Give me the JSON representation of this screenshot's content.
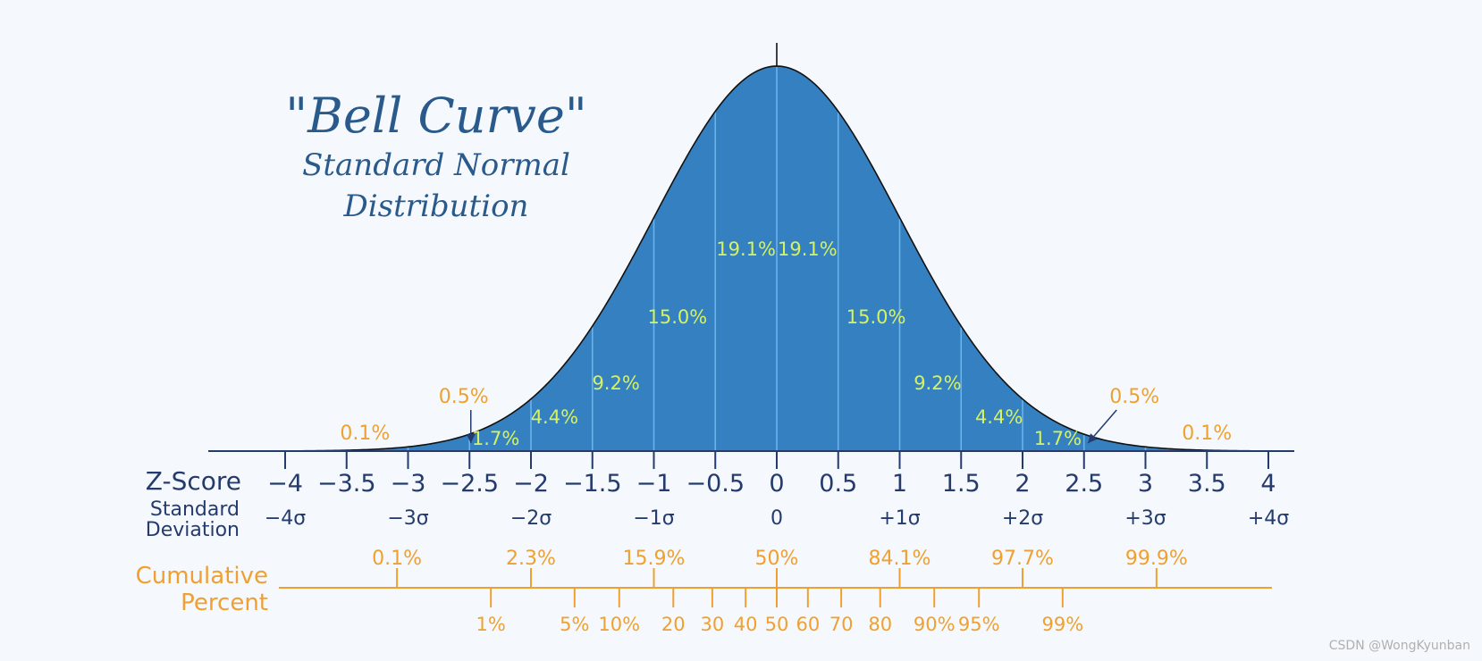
{
  "chart_data": {
    "type": "area",
    "title": "\"Bell Curve\"",
    "subtitle_line1": "Standard Normal",
    "subtitle_line2": "Distribution",
    "xlim": [
      -4.2,
      4.2
    ],
    "z_label": "Z-Score",
    "sd_label_line1": "Standard",
    "sd_label_line2": "Deviation",
    "cum_label_line1": "Cumulative",
    "cum_label_line2": "Percent",
    "z_ticks": [
      {
        "z": -4,
        "label": "−4"
      },
      {
        "z": -3.5,
        "label": "−3.5"
      },
      {
        "z": -3,
        "label": "−3"
      },
      {
        "z": -2.5,
        "label": "−2.5"
      },
      {
        "z": -2,
        "label": "−2"
      },
      {
        "z": -1.5,
        "label": "−1.5"
      },
      {
        "z": -1,
        "label": "−1"
      },
      {
        "z": -0.5,
        "label": "−0.5"
      },
      {
        "z": 0,
        "label": "0"
      },
      {
        "z": 0.5,
        "label": "0.5"
      },
      {
        "z": 1,
        "label": "1"
      },
      {
        "z": 1.5,
        "label": "1.5"
      },
      {
        "z": 2,
        "label": "2"
      },
      {
        "z": 2.5,
        "label": "2.5"
      },
      {
        "z": 3,
        "label": "3"
      },
      {
        "z": 3.5,
        "label": "3.5"
      },
      {
        "z": 4,
        "label": "4"
      }
    ],
    "sd_ticks": [
      {
        "z": -4,
        "label": "−4σ"
      },
      {
        "z": -3,
        "label": "−3σ"
      },
      {
        "z": -2,
        "label": "−2σ"
      },
      {
        "z": -1,
        "label": "−1σ"
      },
      {
        "z": 0,
        "label": "0"
      },
      {
        "z": 1,
        "label": "+1σ"
      },
      {
        "z": 2,
        "label": "+2σ"
      },
      {
        "z": 3,
        "label": "+3σ"
      },
      {
        "z": 4,
        "label": "+4σ"
      }
    ],
    "region_labels": [
      {
        "z": -0.25,
        "label": "19.1%"
      },
      {
        "z": 0.25,
        "label": "19.1%"
      },
      {
        "z": -0.75,
        "label": "15.0%"
      },
      {
        "z": 0.75,
        "label": "15.0%"
      },
      {
        "z": -1.25,
        "label": "9.2%"
      },
      {
        "z": 1.25,
        "label": "9.2%"
      },
      {
        "z": -1.75,
        "label": "4.4%"
      },
      {
        "z": 1.75,
        "label": "4.4%"
      },
      {
        "z": -2.25,
        "label": "1.7%"
      },
      {
        "z": 2.25,
        "label": "1.7%"
      }
    ],
    "tail_labels": [
      {
        "z": -2.62,
        "label": "0.5%"
      },
      {
        "z": 2.62,
        "label": "0.5%"
      },
      {
        "z": -3.35,
        "label": "0.1%"
      },
      {
        "z": 3.5,
        "label": "0.1%"
      }
    ],
    "cumulative_upper": [
      {
        "z": -3.09,
        "label": "0.1%"
      },
      {
        "z": -2.0,
        "label": "2.3%"
      },
      {
        "z": -1.0,
        "label": "15.9%"
      },
      {
        "z": 0.0,
        "label": "50%"
      },
      {
        "z": 1.0,
        "label": "84.1%"
      },
      {
        "z": 2.0,
        "label": "97.7%"
      },
      {
        "z": 3.09,
        "label": "99.9%"
      }
    ],
    "cumulative_lower": [
      {
        "z": -2.326,
        "label": "1%"
      },
      {
        "z": -1.645,
        "label": "5%"
      },
      {
        "z": -1.2816,
        "label": "10%"
      },
      {
        "z": -0.8416,
        "label": "20"
      },
      {
        "z": -0.5244,
        "label": "30"
      },
      {
        "z": -0.2533,
        "label": "40"
      },
      {
        "z": 0.0,
        "label": "50"
      },
      {
        "z": 0.2533,
        "label": "60"
      },
      {
        "z": 0.5244,
        "label": "70"
      },
      {
        "z": 0.8416,
        "label": "80"
      },
      {
        "z": 1.2816,
        "label": "90%"
      },
      {
        "z": 1.645,
        "label": "95%"
      },
      {
        "z": 2.326,
        "label": "99%"
      }
    ],
    "colors": {
      "fill": "#3580c0",
      "stroke": "#111111",
      "divider": "#6ab2ec",
      "axis": "#253b6e",
      "cumulative": "#f0a030",
      "region_text": "#d6f25e"
    }
  },
  "credit": "CSDN @WongKyunban"
}
